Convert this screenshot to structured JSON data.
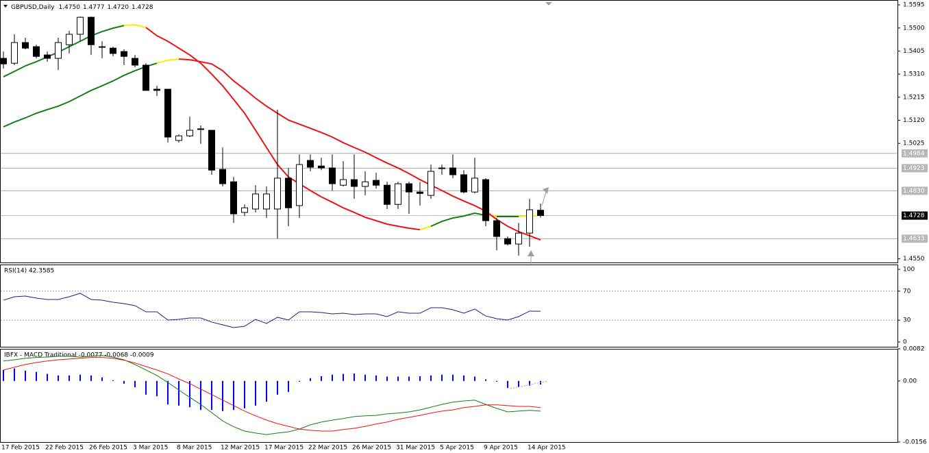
{
  "chart_data": [
    {
      "type": "candlestick",
      "title": "GBPUSD,Daily",
      "header_values": [
        "1.4750",
        "1.4777",
        "1.4720",
        "1.4728"
      ],
      "categories": [
        "17 Feb 2015",
        null,
        null,
        null,
        "22 Feb 2015",
        null,
        null,
        null,
        "26 Feb 2015",
        null,
        null,
        null,
        "3 Mar 2015",
        null,
        null,
        null,
        "8 Mar 2015",
        null,
        null,
        null,
        "12 Mar 2015",
        null,
        null,
        null,
        "17 Mar 2015",
        null,
        null,
        null,
        "22 Mar 2015",
        null,
        null,
        null,
        "26 Mar 2015",
        null,
        null,
        null,
        "31 Mar 2015",
        null,
        null,
        null,
        "5 Apr 2015",
        null,
        null,
        null,
        "9 Apr 2015",
        null,
        null,
        null,
        "14 Apr 2015",
        null
      ],
      "open": [
        1.5375,
        1.5355,
        1.544,
        1.5423,
        1.5389,
        1.5375,
        1.5431,
        1.5474,
        1.5544,
        1.5423,
        1.5417,
        1.5403,
        1.5375,
        1.5347,
        1.5248,
        1.5248,
        1.5037,
        1.5056,
        1.5085,
        1.5079,
        1.4918,
        1.4867,
        1.4741,
        1.4755,
        1.4755,
        1.4755,
        1.4882,
        1.4769,
        1.4955,
        1.4932,
        1.4924,
        1.4853,
        1.4876,
        1.4848,
        1.4873,
        1.4853,
        1.4774,
        1.4859,
        1.4825,
        1.4811,
        1.4924,
        1.4924,
        1.4896,
        1.4825,
        1.4876,
        1.4707,
        1.4633,
        1.4611,
        1.4656,
        1.475
      ],
      "high": [
        1.5403,
        1.5474,
        1.546,
        1.5431,
        1.5403,
        1.546,
        1.5488,
        1.5547,
        1.5547,
        1.5445,
        1.5423,
        1.5412,
        1.5389,
        1.5355,
        1.5262,
        1.5248,
        1.5062,
        1.5135,
        1.5099,
        1.5079,
        1.5008,
        1.4887,
        1.4774,
        1.4853,
        1.4848,
        1.5164,
        1.4924,
        1.498,
        1.498,
        1.4966,
        1.498,
        1.4952,
        1.498,
        1.491,
        1.4904,
        1.4867,
        1.4867,
        1.4867,
        1.4867,
        1.4938,
        1.4938,
        1.498,
        1.4915,
        1.4966,
        1.4882,
        1.4718,
        1.4642,
        1.4698,
        1.4797,
        1.4777
      ],
      "low": [
        1.5333,
        1.5347,
        1.5412,
        1.5375,
        1.5361,
        1.5327,
        1.5395,
        1.5445,
        1.5389,
        1.5375,
        1.5383,
        1.5347,
        1.5338,
        1.5243,
        1.522,
        1.5028,
        1.5028,
        1.5051,
        1.5023,
        1.4896,
        1.4848,
        1.4698,
        1.4726,
        1.4741,
        1.4718,
        1.4633,
        1.4684,
        1.4718,
        1.491,
        1.4915,
        1.4831,
        1.4848,
        1.4797,
        1.4811,
        1.4839,
        1.4755,
        1.4755,
        1.4735,
        1.4769,
        1.4797,
        1.4896,
        1.4882,
        1.4819,
        1.4819,
        1.4684,
        1.4585,
        1.4605,
        1.4563,
        1.46,
        1.472
      ],
      "close": [
        1.5352,
        1.544,
        1.5417,
        1.5383,
        1.5375,
        1.544,
        1.5474,
        1.5544,
        1.5431,
        1.5423,
        1.5395,
        1.5383,
        1.5347,
        1.5243,
        1.5243,
        1.5051,
        1.5056,
        1.5079,
        1.5085,
        1.4915,
        1.4859,
        1.4735,
        1.476,
        1.4817,
        1.4817,
        1.4882,
        1.476,
        1.4938,
        1.4927,
        1.4924,
        1.4859,
        1.4876,
        1.4848,
        1.4867,
        1.4853,
        1.4774,
        1.4859,
        1.4825,
        1.4819,
        1.491,
        1.4924,
        1.4896,
        1.4825,
        1.4882,
        1.4707,
        1.4642,
        1.4611,
        1.4656,
        1.4752,
        1.4728
      ],
      "up_color": "#ffffff",
      "down_color": "#000000",
      "series": [
        {
          "values": [
            1.5299,
            1.5321,
            1.5344,
            1.5361,
            1.5381,
            1.54,
            1.5423,
            1.5445,
            1.5468,
            1.5485,
            1.5499,
            1.551,
            1.5513,
            1.5502,
            1.5468,
            1.5445,
            1.5417,
            1.5389,
            1.5355,
            1.531,
            1.5262,
            1.5206,
            1.5149,
            1.5079,
            1.5008,
            1.4938,
            1.4887,
            1.4859,
            1.4831,
            1.4805,
            1.4783,
            1.476,
            1.4741,
            1.4721,
            1.4707,
            1.4693,
            1.4684,
            1.4676,
            1.467,
            1.4684,
            1.4704,
            1.4718,
            1.4726,
            1.4738,
            1.4729,
            1.4724,
            1.4724,
            1.4724,
            1.4726,
            1.4729
          ],
          "colors": [
            "#108010",
            "#108010",
            "#108010",
            "#108010",
            "#108010",
            "#108010",
            "#108010",
            "#108010",
            "#108010",
            "#108010",
            "#108010",
            "#f0f000",
            "#f0f000",
            "#ee1111",
            "#ee1111",
            "#ee1111",
            "#ee1111",
            "#ee1111",
            "#ee1111",
            "#ee1111",
            "#ee1111",
            "#ee1111",
            "#ee1111",
            "#ee1111",
            "#ee1111",
            "#ee1111",
            "#ee1111",
            "#ee1111",
            "#ee1111",
            "#ee1111",
            "#ee1111",
            "#ee1111",
            "#ee1111",
            "#ee1111",
            "#ee1111",
            "#ee1111",
            "#ee1111",
            "#ee1111",
            "#f0f000",
            "#108010",
            "#108010",
            "#108010",
            "#108010",
            "#108010",
            "#f0f000",
            "#108010",
            "#108010",
            "#f0f000",
            "#f0f000",
            "#f0f000"
          ]
        },
        {
          "values": [
            1.5093,
            1.5113,
            1.513,
            1.5149,
            1.5164,
            1.5178,
            1.5197,
            1.522,
            1.5243,
            1.5262,
            1.5282,
            1.5305,
            1.5324,
            1.5341,
            1.5355,
            1.5367,
            1.5372,
            1.5369,
            1.5361,
            1.5352,
            1.5324,
            1.5282,
            1.5248,
            1.5211,
            1.5178,
            1.5149,
            1.5121,
            1.5104,
            1.5087,
            1.507,
            1.5051,
            1.5028,
            1.5008,
            1.4989,
            1.4966,
            1.4944,
            1.4924,
            1.4901,
            1.4876,
            1.4853,
            1.4831,
            1.4808,
            1.4788,
            1.4769,
            1.4746,
            1.4712,
            1.4684,
            1.4662,
            1.4645,
            1.4628
          ],
          "colors": [
            "#108010",
            "#108010",
            "#108010",
            "#108010",
            "#108010",
            "#108010",
            "#108010",
            "#108010",
            "#108010",
            "#108010",
            "#108010",
            "#108010",
            "#108010",
            "#108010",
            "#f0f000",
            "#f0f000",
            "#ee1111",
            "#ee1111",
            "#ee1111",
            "#ee1111",
            "#ee1111",
            "#ee1111",
            "#ee1111",
            "#ee1111",
            "#ee1111",
            "#ee1111",
            "#ee1111",
            "#ee1111",
            "#ee1111",
            "#ee1111",
            "#ee1111",
            "#ee1111",
            "#ee1111",
            "#ee1111",
            "#ee1111",
            "#ee1111",
            "#ee1111",
            "#ee1111",
            "#ee1111",
            "#ee1111",
            "#ee1111",
            "#ee1111",
            "#ee1111",
            "#ee1111",
            "#ee1111",
            "#ee1111",
            "#ee1111",
            "#ee1111",
            "#ee1111",
            "#ee1111"
          ]
        }
      ],
      "ylim": [
        1.4535,
        1.5615
      ],
      "yticks": [
        1.5595,
        {
          "value": 1.55,
          "label": "1.5500"
        },
        1.5405,
        {
          "value": 1.531,
          "label": "1.5310"
        },
        1.5215,
        {
          "value": 1.512,
          "label": "1.5120"
        },
        1.5025,
        {
          "value": 1.455,
          "label": "1.4550"
        }
      ],
      "levels": [
        1.4984,
        1.4923,
        {
          "value": 1.483,
          "label": "1.4830"
        },
        1.4633
      ],
      "last_price": 1.4728
    },
    {
      "type": "line",
      "title": "RSI(14) 42.3585",
      "series": [
        {
          "color": "#1c1c8c",
          "values": [
            57.5,
            62.3,
            63.2,
            60.4,
            58.5,
            58.5,
            62.3,
            67.0,
            58.5,
            57.5,
            54.7,
            52.8,
            50.0,
            41.5,
            41.5,
            30.2,
            31.1,
            33.0,
            33.0,
            27.4,
            23.6,
            19.8,
            21.7,
            31.1,
            25.5,
            34.0,
            30.2,
            41.5,
            41.5,
            40.6,
            38.7,
            39.6,
            37.7,
            38.7,
            38.7,
            34.9,
            41.5,
            39.6,
            39.6,
            47.2,
            47.2,
            44.3,
            39.6,
            45.3,
            35.8,
            32.1,
            30.2,
            34.9,
            42.5,
            42.3585
          ]
        }
      ],
      "ylim": [
        -6.6,
        106.6
      ],
      "yticks": [
        100,
        70,
        30,
        0
      ],
      "levels": [
        70,
        30
      ]
    },
    {
      "type": "bar",
      "title": "IBFX - MACD Traditional -0.0077 -0.0068 -0.0009",
      "values": [
        0.0028,
        0.0032,
        0.0026,
        0.0023,
        0.0018,
        0.0014,
        0.0014,
        0.0016,
        0.0014,
        0.0009,
        0.0002,
        -0.0007,
        -0.0016,
        -0.0035,
        -0.0039,
        -0.006,
        -0.0063,
        -0.0067,
        -0.0074,
        -0.0074,
        -0.0077,
        -0.0074,
        -0.007,
        -0.0063,
        -0.0053,
        -0.0035,
        -0.0028,
        -0.0002,
        0.0007,
        0.0012,
        0.0016,
        0.0018,
        0.0019,
        0.0016,
        0.0014,
        0.0011,
        0.0011,
        0.0011,
        0.0012,
        0.0014,
        0.0016,
        0.0016,
        0.0014,
        0.0011,
        0.0004,
        -0.0002,
        -0.0018,
        -0.0016,
        -0.0012,
        -0.0009
      ],
      "color": "#0000ff",
      "series": [
        {
          "color": "#108010",
          "values": [
            0.0051,
            0.0054,
            0.0058,
            0.006,
            0.0061,
            0.0063,
            0.0063,
            0.0061,
            0.0063,
            0.0065,
            0.0061,
            0.0054,
            0.0042,
            0.0028,
            0.0014,
            -0.0004,
            -0.0023,
            -0.0042,
            -0.006,
            -0.0081,
            -0.0102,
            -0.0117,
            -0.0128,
            -0.0133,
            -0.0137,
            -0.0133,
            -0.013,
            -0.0123,
            -0.0112,
            -0.0105,
            -0.01,
            -0.0096,
            -0.0091,
            -0.0089,
            -0.0088,
            -0.0084,
            -0.0082,
            -0.0079,
            -0.0074,
            -0.0067,
            -0.006,
            -0.0054,
            -0.0051,
            -0.0049,
            -0.006,
            -0.007,
            -0.0079,
            -0.0077,
            -0.0075,
            -0.0077
          ]
        },
        {
          "color": "#ee1111",
          "values": [
            0.0028,
            0.0035,
            0.0042,
            0.0047,
            0.0051,
            0.0054,
            0.0056,
            0.0058,
            0.006,
            0.006,
            0.0058,
            0.0053,
            0.0046,
            0.0037,
            0.0028,
            0.0018,
            0.0005,
            -0.0007,
            -0.0021,
            -0.0035,
            -0.0049,
            -0.0063,
            -0.0077,
            -0.0089,
            -0.01,
            -0.0109,
            -0.0116,
            -0.0123,
            -0.0126,
            -0.0128,
            -0.0128,
            -0.0124,
            -0.0121,
            -0.0116,
            -0.011,
            -0.0105,
            -0.0098,
            -0.0093,
            -0.0088,
            -0.0082,
            -0.0077,
            -0.0074,
            -0.0068,
            -0.0065,
            -0.0061,
            -0.0061,
            -0.0063,
            -0.0065,
            -0.0065,
            -0.0068
          ]
        }
      ],
      "ylim": [
        -0.0156,
        0.0082
      ],
      "yticks": [
        0.0082,
        {
          "value": 0,
          "label": "0.00"
        },
        -0.0156
      ]
    }
  ]
}
